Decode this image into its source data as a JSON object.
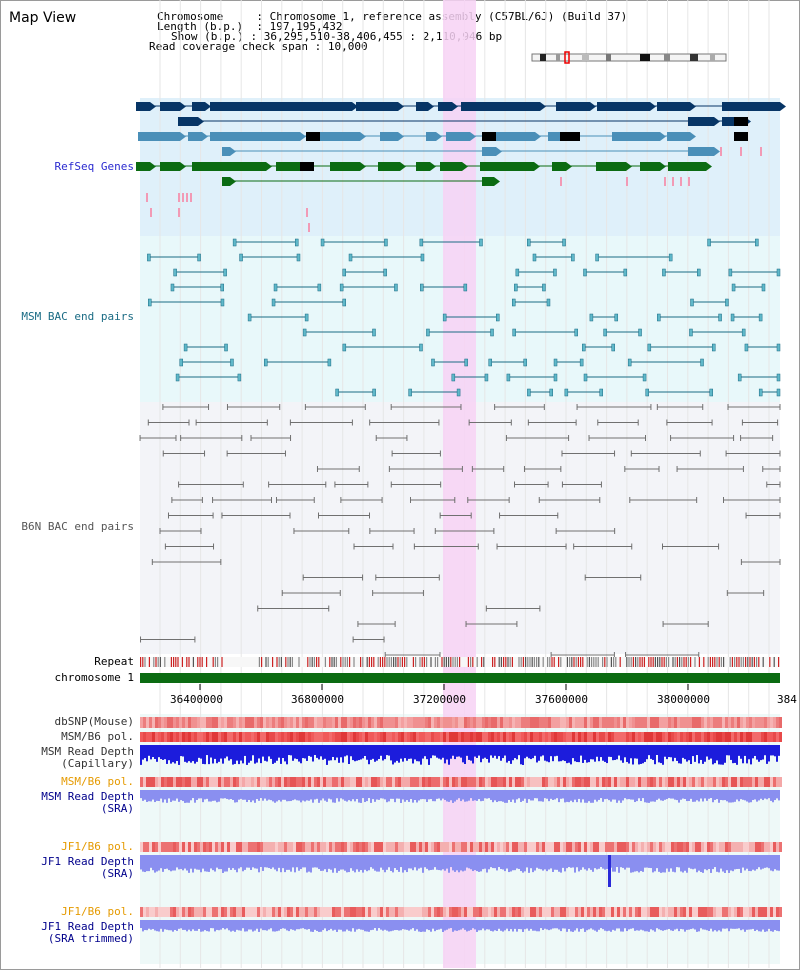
{
  "page_title": "Map View",
  "info": {
    "chromosome_label": "Chromosome",
    "chromosome_value": "Chromosome 1, reference assembly (C57BL/6J) (Build 37)",
    "length_label": "Length (b.p.)",
    "length_value": "197,195,432",
    "show_label": "Show (b.p.)",
    "show_value": "36,295,510-38,406,455 : 2,110,946 bp",
    "coverage_label": "Read coverage check span",
    "coverage_value": "10,000"
  },
  "tracks": {
    "refseq": "RefSeq Genes",
    "msm_bac": "MSM BAC end pairs",
    "b6n_bac": "B6N BAC end pairs",
    "repeat": "Repeat",
    "chromosome": "chromosome 1",
    "dbsnp": "dbSNP(Mouse)",
    "msm_b6_pol_1": "MSM/B6 pol.",
    "msm_read_depth_cap_1": "MSM Read Depth",
    "msm_read_depth_cap_2": "(Capillary)",
    "msm_b6_pol_2": "MSM/B6 pol.",
    "msm_read_depth_sra_1": "MSM Read Depth",
    "msm_read_depth_sra_2": "(SRA)",
    "jf1_b6_pol_1": "JF1/B6 pol.",
    "jf1_read_depth_sra_1": "JF1 Read Depth",
    "jf1_read_depth_sra_2": "(SRA)",
    "jf1_b6_pol_2": "JF1/B6 pol.",
    "jf1_read_depth_trim_1": "JF1 Read Depth",
    "jf1_read_depth_trim_2": "(SRA trimmed)"
  },
  "axis": {
    "ticks": [
      "36400000",
      "36800000",
      "37200000",
      "37600000",
      "38000000",
      "384"
    ]
  },
  "colors": {
    "refseq_bg": "#dff0fa",
    "msm_bg": "#e8f8fa",
    "b6n_bg": "#f3f4f8",
    "highlight": "#f7d2f4",
    "gene_navy": "#073566",
    "gene_lightblue": "#4a8fb8",
    "gene_green": "#0b6b12",
    "msm_pair": "#1a6b84",
    "b6n_pair": "#707070",
    "chromosome_bar": "#0b6b12",
    "snp_red": "#e84848",
    "depth_blue": "#1c1cdc",
    "depth_lavender": "#8a8ff0"
  }
}
